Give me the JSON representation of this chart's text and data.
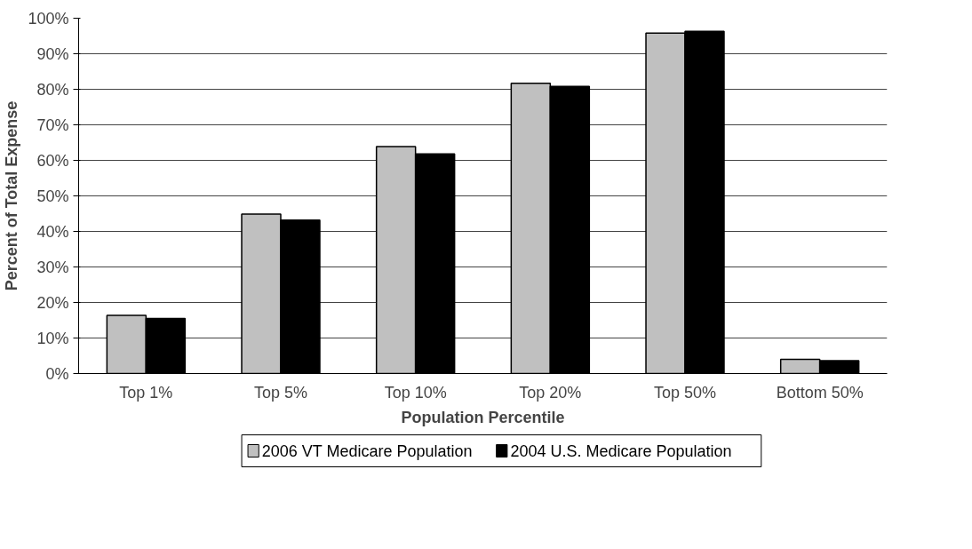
{
  "chart_data": {
    "type": "bar",
    "xlabel": "Population Percentile",
    "ylabel": "Percent of Total Expense",
    "categories": [
      "Top 1%",
      "Top 5%",
      "Top 10%",
      "Top 20%",
      "Top 50%",
      "Bottom 50%"
    ],
    "series": [
      {
        "name": "2006 VT Medicare Population",
        "color": "#c0c0c0",
        "values": [
          16.4,
          44.9,
          63.9,
          81.7,
          95.8,
          4.0
        ]
      },
      {
        "name": "2004 U.S. Medicare Population",
        "color": "#000000",
        "values": [
          15.5,
          43.2,
          61.8,
          80.8,
          96.3,
          3.6
        ]
      }
    ],
    "ylim": [
      0,
      100
    ],
    "yticks": [
      {
        "value": 0,
        "label": "0%"
      },
      {
        "value": 10,
        "label": "10%"
      },
      {
        "value": 20,
        "label": "20%"
      },
      {
        "value": 30,
        "label": "30%"
      },
      {
        "value": 40,
        "label": "40%"
      },
      {
        "value": 50,
        "label": "50%"
      },
      {
        "value": 60,
        "label": "60%"
      },
      {
        "value": 70,
        "label": "70%"
      },
      {
        "value": 80,
        "label": "80%"
      },
      {
        "value": 90,
        "label": "90%"
      },
      {
        "value": 100,
        "label": "100%"
      }
    ],
    "grid": "y",
    "legend": "bottom"
  }
}
